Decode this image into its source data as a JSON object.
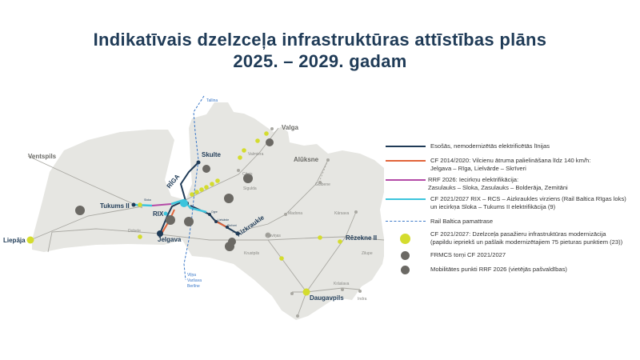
{
  "title": {
    "line1": "Indikatīvais dzelzceļa infrastruktūras attīstības plāns",
    "line2": "2025. – 2029. gadam"
  },
  "colors": {
    "title": "#1f3b57",
    "existing": "#1f3b57",
    "cf2014": "#e2643a",
    "rrf": "#b44aa6",
    "cf2021": "#3cc4dc",
    "rail_baltica": "#3a78c8",
    "station": "#d4dc2e",
    "icon": "#6b6964",
    "land": "#e6e6e2"
  },
  "map": {
    "cities": {
      "ventspils": "Ventspils",
      "liepaja": "Liepāja",
      "tukums": "Tukums II",
      "jelgava": "Jelgava",
      "rix": "RIX",
      "riga": "RĪGA",
      "skulte": "Skulte",
      "valga": "Valga",
      "aluksne": "Alūksne",
      "aizkraukle": "Aizkraukle",
      "rezekne": "Rēzekne II",
      "daugavpils": "Daugavpils"
    },
    "places": {
      "valmiera": "Valmiera",
      "cesis": "Cēsis",
      "sigulda": "Sigulda",
      "gulbene": "Gulbene",
      "madona": "Madona",
      "plavinas": "Pļaviņas",
      "krustpils": "Krustpils",
      "karsava": "Kārsava",
      "zilupe": "Zilupe",
      "kraslava": "Krāslava",
      "indra": "Indra",
      "dobele": "Dobele",
      "ogre": "Ogre",
      "lielvarde": "Lielvārde",
      "skriveri": "Skrīveri",
      "sloka": "Sloka"
    },
    "rail_baltica_labels": {
      "tallina": "Tallina",
      "vilna": "Viļņa",
      "varsava": "Varšava",
      "berline": "Berlīne"
    }
  },
  "legend": [
    {
      "icon": "line-existing",
      "text": [
        "Esošās, nemodernizētās elektrificētās līnijas"
      ]
    },
    {
      "icon": "line-cf2014",
      "text": [
        "CF 2014/2020: Vilcienu ātruma palielināšana līdz 140 km/h:",
        "Jelgava – Rīga, Lielvārde – Skrīveri"
      ]
    },
    {
      "icon": "line-rrf",
      "text": [
        "RRF 2026: Iecirkņu elektrifikācija:",
        "Zasulauks – Sloka, Zasulauks – Bolderāja, Zemitāni"
      ]
    },
    {
      "icon": "line-cf2021",
      "text": [
        "CF 2021/2027 RIX – RCS – Aizkraukles virziens (Rail Baltica Rīgas loks)",
        "un iecirkņa Sloka – Tukums II elektrifikācija (9)"
      ]
    },
    {
      "icon": "line-rail-baltica-dashed",
      "text": [
        "Rail Baltica pamattrase"
      ]
    },
    {
      "icon": "station-dot",
      "text": [
        "CF 2021/2027: Dzelzceļa pasažieru infrastruktūras modernizācija",
        "(papildu iepriekš un pašlaik modernizētajiem 75 pieturas punktiem (23))"
      ]
    },
    {
      "icon": "frmcs-tower-icon",
      "text": [
        "FRMCS torņi CF 2021/2027"
      ]
    },
    {
      "icon": "mobility-point-icon",
      "text": [
        "Mobilitātes punkti RRF 2026 (vietējās pašvaldības)"
      ]
    }
  ]
}
